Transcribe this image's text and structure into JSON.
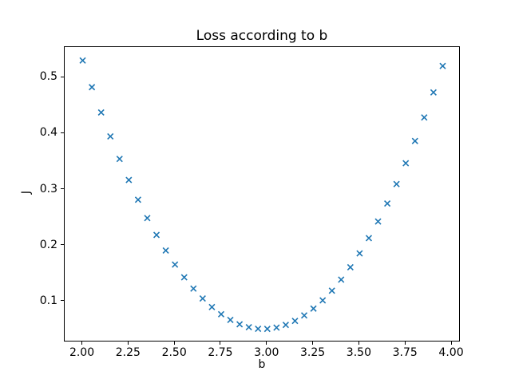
{
  "chart_data": {
    "type": "scatter",
    "title": "Loss according to b",
    "xlabel": "b",
    "ylabel": "J",
    "marker": "x",
    "marker_color": "#1f77b4",
    "grid": false,
    "legend_position": "none",
    "xlim": [
      1.9025,
      4.0475
    ],
    "ylim": [
      0.0272,
      0.5544
    ],
    "xticks": {
      "values": [
        2.0,
        2.25,
        2.5,
        2.75,
        3.0,
        3.25,
        3.5,
        3.75,
        4.0
      ],
      "labels": [
        "2.00",
        "2.25",
        "2.50",
        "2.75",
        "3.00",
        "3.25",
        "3.50",
        "3.75",
        "4.00"
      ]
    },
    "yticks": {
      "values": [
        0.1,
        0.2,
        0.3,
        0.4,
        0.5
      ],
      "labels": [
        "0.1",
        "0.2",
        "0.3",
        "0.4",
        "0.5"
      ]
    },
    "x": [
      2.0,
      2.05,
      2.1,
      2.15,
      2.2,
      2.25,
      2.3,
      2.35,
      2.4,
      2.45,
      2.5,
      2.55,
      2.6,
      2.65,
      2.7,
      2.75,
      2.8,
      2.85,
      2.9,
      2.95,
      3.0,
      3.05,
      3.1,
      3.15,
      3.2,
      3.25,
      3.3,
      3.35,
      3.4,
      3.45,
      3.5,
      3.55,
      3.6,
      3.65,
      3.7,
      3.75,
      3.8,
      3.85,
      3.9,
      3.95
    ],
    "y": [
      0.5304,
      0.4828,
      0.4376,
      0.3949,
      0.3547,
      0.317,
      0.2818,
      0.2491,
      0.2189,
      0.1912,
      0.166,
      0.1433,
      0.1231,
      0.1054,
      0.0901,
      0.0774,
      0.0672,
      0.0594,
      0.0542,
      0.0514,
      0.0512,
      0.0534,
      0.0582,
      0.0654,
      0.0752,
      0.0874,
      0.1021,
      0.1193,
      0.1391,
      0.1613,
      0.186,
      0.2132,
      0.2429,
      0.2751,
      0.3098,
      0.347,
      0.3867,
      0.4288,
      0.4735,
      0.5207
    ]
  }
}
